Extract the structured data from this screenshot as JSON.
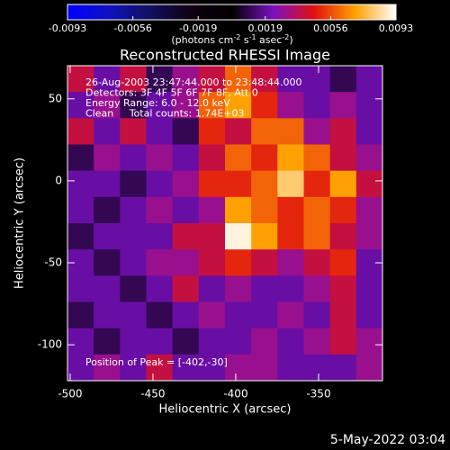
{
  "chart_data": {
    "type": "heatmap",
    "title": "Reconstructed RHESSI Image",
    "xlabel": "Heliocentric X (arcsec)",
    "ylabel": "Heliocentric Y (arcsec)",
    "xlim": [
      -501.6,
      -311.4
    ],
    "ylim": [
      -121.9,
      70.2
    ],
    "xticks": [
      -500,
      -450,
      -400,
      -350
    ],
    "yticks": [
      -100,
      -50,
      0,
      50
    ],
    "annotations": [
      "26-Aug-2003 23:47:44.000 to 23:48:44.000",
      "Detectors: 3F 4F 5F 6F 7F 8F, Att 0",
      "Energy Range: 6.0 - 12.0 keV",
      "Clean     Total counts: 1.74E+03"
    ],
    "peak_note": "Position of Peak = [-402,-30]",
    "footer": "5-May-2022 03:04",
    "colorbar": {
      "lim": [
        -0.0093,
        0.0093
      ],
      "ticks": [
        -0.0093,
        -0.0056,
        -0.0019,
        0.0019,
        0.0056,
        0.0093
      ],
      "label": [
        "(photons cm",
        "-2",
        " s",
        "-1",
        " asec",
        "-2",
        ")"
      ]
    },
    "colormap": [
      "#0000ff",
      "#1010c0",
      "#101060",
      "#100010",
      "#000000",
      "#7a10c0",
      "#e01010",
      "#ffa000",
      "#ffffff"
    ],
    "z": [
      [
        0.004,
        0.002,
        0.004,
        0.001,
        0.003,
        0.004,
        0.006,
        0.004,
        0.002,
        0.002,
        0.001,
        0.002
      ],
      [
        0.002,
        0.003,
        0.001,
        0.002,
        0.003,
        0.006,
        0.007,
        0.005,
        0.003,
        0.002,
        0.003,
        0.002
      ],
      [
        0.004,
        0.002,
        0.004,
        0.002,
        0.001,
        0.005,
        0.004,
        0.006,
        0.006,
        0.003,
        0.004,
        0.002
      ],
      [
        0.001,
        0.003,
        0.002,
        0.003,
        0.002,
        0.004,
        0.006,
        0.005,
        0.007,
        0.006,
        0.004,
        0.003
      ],
      [
        0.002,
        0.002,
        0.001,
        0.002,
        0.003,
        0.005,
        0.005,
        0.006,
        0.008,
        0.005,
        0.007,
        0.004
      ],
      [
        0.002,
        0.001,
        0.002,
        0.003,
        0.002,
        0.003,
        0.007,
        0.006,
        0.005,
        0.006,
        0.005,
        0.003
      ],
      [
        0.001,
        0.002,
        0.002,
        0.002,
        0.004,
        0.004,
        0.009,
        0.007,
        0.005,
        0.006,
        0.004,
        0.003
      ],
      [
        0.002,
        0.001,
        0.002,
        0.003,
        0.003,
        0.004,
        0.005,
        0.004,
        0.003,
        0.004,
        0.005,
        0.002
      ],
      [
        0.002,
        0.002,
        0.001,
        0.002,
        0.004,
        0.002,
        0.003,
        0.002,
        0.002,
        0.003,
        0.004,
        0.002
      ],
      [
        0.001,
        0.002,
        0.002,
        0.001,
        0.002,
        0.003,
        0.002,
        0.002,
        0.003,
        0.002,
        0.004,
        0.002
      ],
      [
        0.002,
        0.001,
        0.002,
        0.002,
        0.001,
        0.002,
        0.002,
        0.003,
        0.002,
        0.003,
        0.004,
        0.003
      ],
      [
        0.002,
        0.003,
        0.002,
        0.004,
        0.002,
        0.002,
        0.003,
        0.003,
        0.002,
        0.002,
        0.002,
        0.003
      ]
    ]
  }
}
